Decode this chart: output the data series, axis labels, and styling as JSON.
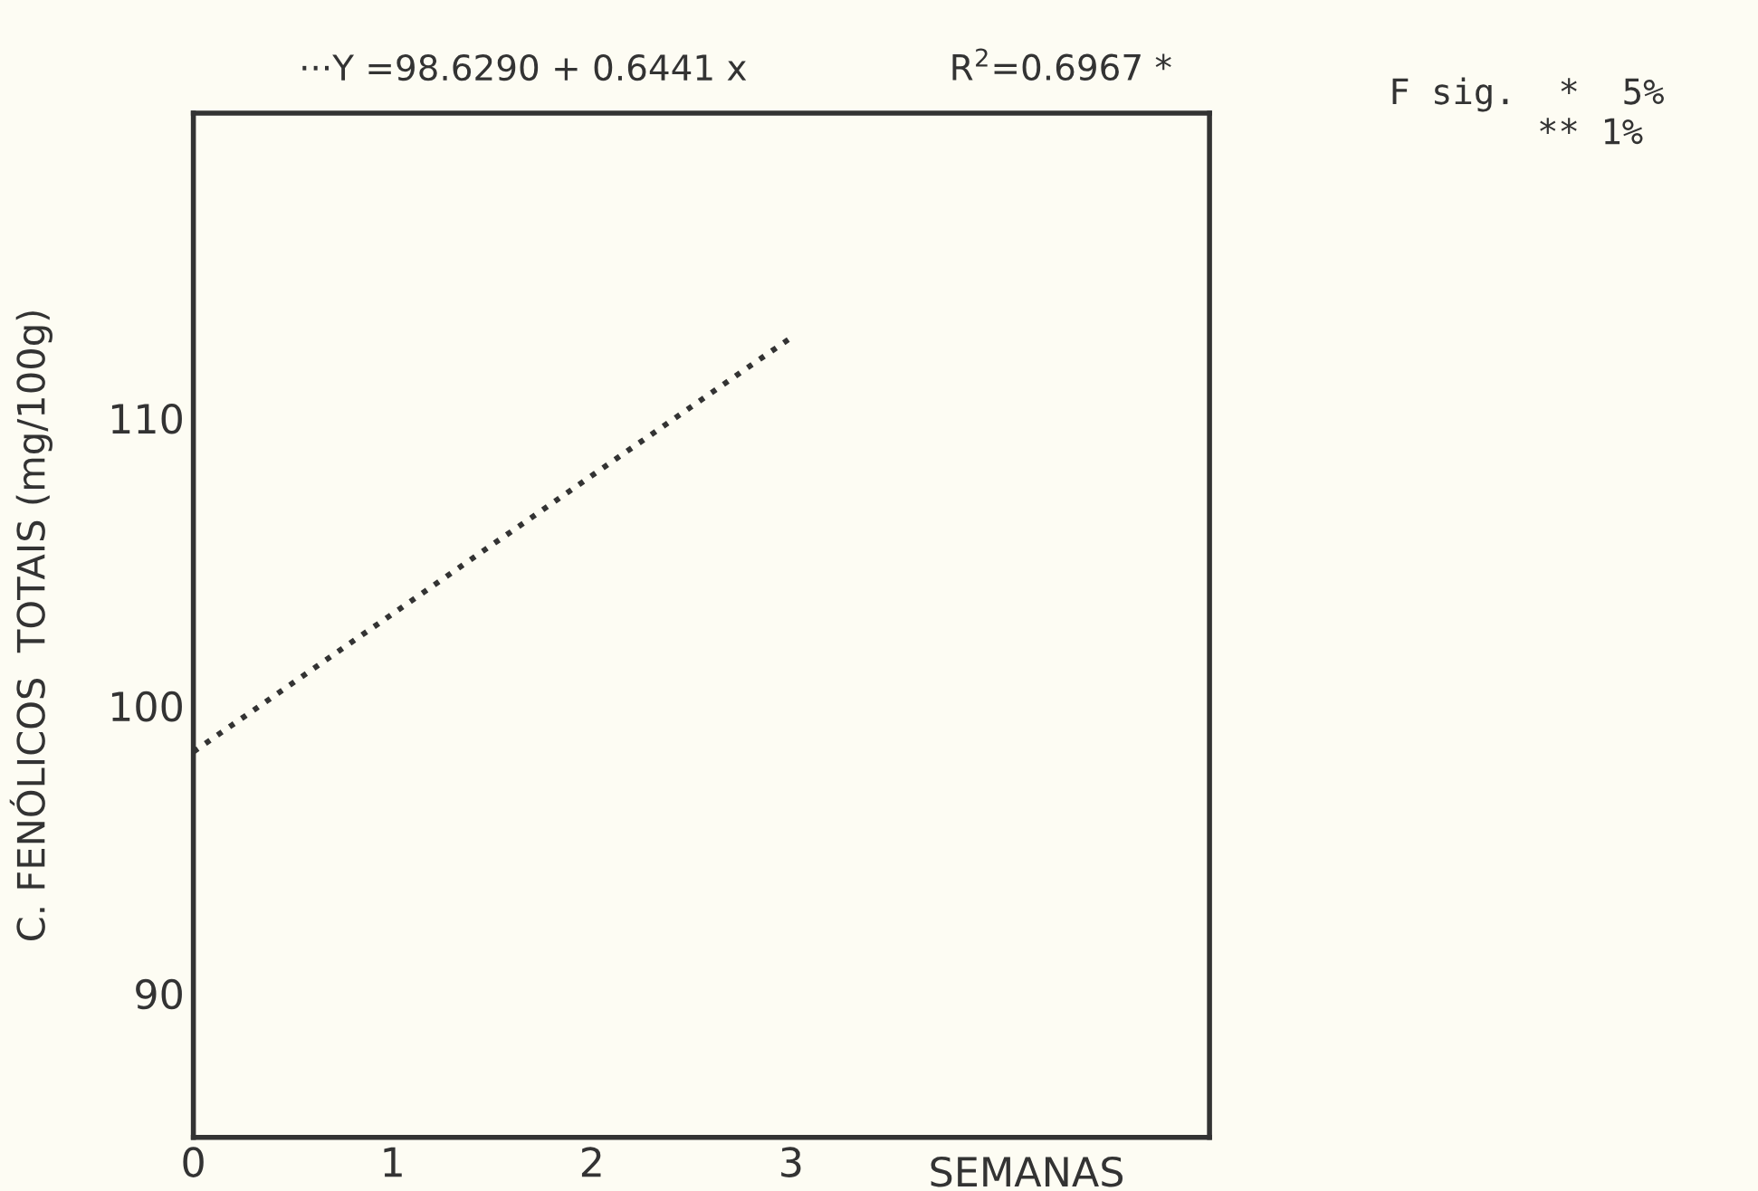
{
  "chart_data": {
    "type": "line",
    "x": [
      0,
      1,
      2,
      3
    ],
    "series": [
      {
        "color": "#333333",
        "values": [
          98.4,
          103.2,
          108,
          112.8
        ]
      }
    ],
    "xlim": [
      0,
      5.1
    ],
    "xticks": [
      0,
      1,
      2,
      3
    ],
    "ylim": [
      85,
      120.6
    ],
    "yticks": [
      90,
      100,
      110
    ],
    "xlabel": "SEMANAS",
    "ylabel": "C. FENÓLICOS  TOTAIS (mg/100g)",
    "line_style": "dotted",
    "marker": "none",
    "grid": false,
    "legend": false,
    "annotations": [
      "···Y =98.6290 + 0.6441 x",
      "R$^{2}$=0.6967 *",
      "F sig.  *  5%\n       ** 1%"
    ]
  }
}
